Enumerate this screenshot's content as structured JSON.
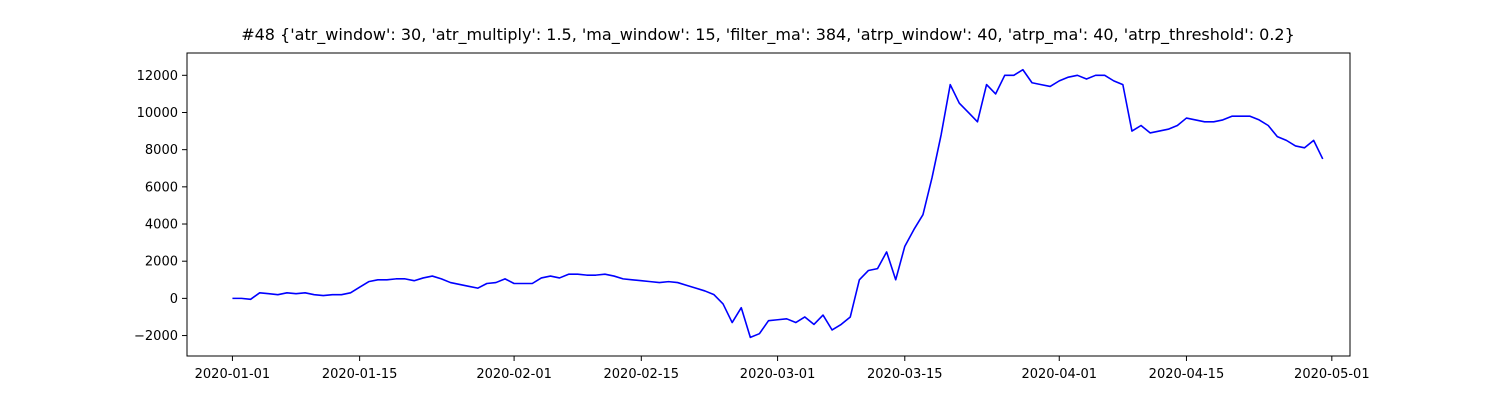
{
  "chart_data": {
    "type": "line",
    "title": "#48 {'atr_window': 30, 'atr_multiply': 1.5, 'ma_window': 15, 'filter_ma': 384, 'atrp_window': 40, 'atrp_ma': 40, 'atrp_threshold': 0.2}",
    "xlabel": "",
    "ylabel": "",
    "xlim": [
      "2019-12-27",
      "2020-05-03"
    ],
    "ylim": [
      -3100,
      13200
    ],
    "grid": false,
    "x_ticks": [
      "2020-01-01",
      "2020-01-15",
      "2020-02-01",
      "2020-02-15",
      "2020-03-01",
      "2020-03-15",
      "2020-04-01",
      "2020-04-15",
      "2020-05-01"
    ],
    "y_ticks": [
      -2000,
      0,
      2000,
      4000,
      6000,
      8000,
      10000,
      12000
    ],
    "series": [
      {
        "color": "#0000ff",
        "x": [
          "2020-01-01",
          "2020-01-02",
          "2020-01-03",
          "2020-01-04",
          "2020-01-05",
          "2020-01-06",
          "2020-01-07",
          "2020-01-08",
          "2020-01-09",
          "2020-01-10",
          "2020-01-11",
          "2020-01-12",
          "2020-01-13",
          "2020-01-14",
          "2020-01-15",
          "2020-01-16",
          "2020-01-17",
          "2020-01-18",
          "2020-01-19",
          "2020-01-20",
          "2020-01-21",
          "2020-01-22",
          "2020-01-23",
          "2020-01-24",
          "2020-01-25",
          "2020-01-26",
          "2020-01-27",
          "2020-01-28",
          "2020-01-29",
          "2020-01-30",
          "2020-01-31",
          "2020-02-01",
          "2020-02-02",
          "2020-02-03",
          "2020-02-04",
          "2020-02-05",
          "2020-02-06",
          "2020-02-07",
          "2020-02-08",
          "2020-02-09",
          "2020-02-10",
          "2020-02-11",
          "2020-02-12",
          "2020-02-13",
          "2020-02-14",
          "2020-02-15",
          "2020-02-16",
          "2020-02-17",
          "2020-02-18",
          "2020-02-19",
          "2020-02-20",
          "2020-02-21",
          "2020-02-22",
          "2020-02-23",
          "2020-02-24",
          "2020-02-25",
          "2020-02-26",
          "2020-02-27",
          "2020-02-28",
          "2020-02-29",
          "2020-03-01",
          "2020-03-02",
          "2020-03-03",
          "2020-03-04",
          "2020-03-05",
          "2020-03-06",
          "2020-03-07",
          "2020-03-08",
          "2020-03-09",
          "2020-03-10",
          "2020-03-11",
          "2020-03-12",
          "2020-03-13",
          "2020-03-14",
          "2020-03-15",
          "2020-03-16",
          "2020-03-17",
          "2020-03-18",
          "2020-03-19",
          "2020-03-20",
          "2020-03-21",
          "2020-03-22",
          "2020-03-23",
          "2020-03-24",
          "2020-03-25",
          "2020-03-26",
          "2020-03-27",
          "2020-03-28",
          "2020-03-29",
          "2020-03-30",
          "2020-03-31",
          "2020-04-01",
          "2020-04-02",
          "2020-04-03",
          "2020-04-04",
          "2020-04-05",
          "2020-04-06",
          "2020-04-07",
          "2020-04-08",
          "2020-04-09",
          "2020-04-10",
          "2020-04-11",
          "2020-04-12",
          "2020-04-13",
          "2020-04-14",
          "2020-04-15",
          "2020-04-16",
          "2020-04-17",
          "2020-04-18",
          "2020-04-19",
          "2020-04-20",
          "2020-04-21",
          "2020-04-22",
          "2020-04-23",
          "2020-04-24",
          "2020-04-25",
          "2020-04-26",
          "2020-04-27",
          "2020-04-28",
          "2020-04-29",
          "2020-04-30"
        ],
        "values": [
          0,
          0,
          -50,
          300,
          250,
          200,
          300,
          250,
          300,
          200,
          150,
          200,
          200,
          300,
          600,
          900,
          1000,
          1000,
          1050,
          1050,
          950,
          1100,
          1200,
          1050,
          850,
          750,
          650,
          550,
          800,
          850,
          1050,
          800,
          800,
          800,
          1100,
          1200,
          1100,
          1300,
          1300,
          1250,
          1250,
          1300,
          1200,
          1050,
          1000,
          950,
          900,
          850,
          900,
          850,
          700,
          550,
          400,
          200,
          -300,
          -1300,
          -500,
          -2100,
          -1900,
          -1200,
          -1150,
          -1100,
          -1300,
          -1000,
          -1400,
          -900,
          -1700,
          -1400,
          -1000,
          1000,
          1500,
          1600,
          2500,
          1000,
          2800,
          3700,
          4500,
          6500,
          8800,
          11500,
          10500,
          10000,
          9500,
          11500,
          11000,
          12000,
          12000,
          12300,
          11600,
          11500,
          11400,
          11700,
          11900,
          12000,
          11800,
          12000,
          12000,
          11700,
          11500,
          9000,
          9300,
          8900,
          9000,
          9100,
          9300,
          9700,
          9600,
          9500,
          9500,
          9600,
          9800,
          9800,
          9800,
          9600,
          9300,
          8700,
          8500,
          8200,
          8100,
          8500,
          7500
        ]
      }
    ]
  }
}
